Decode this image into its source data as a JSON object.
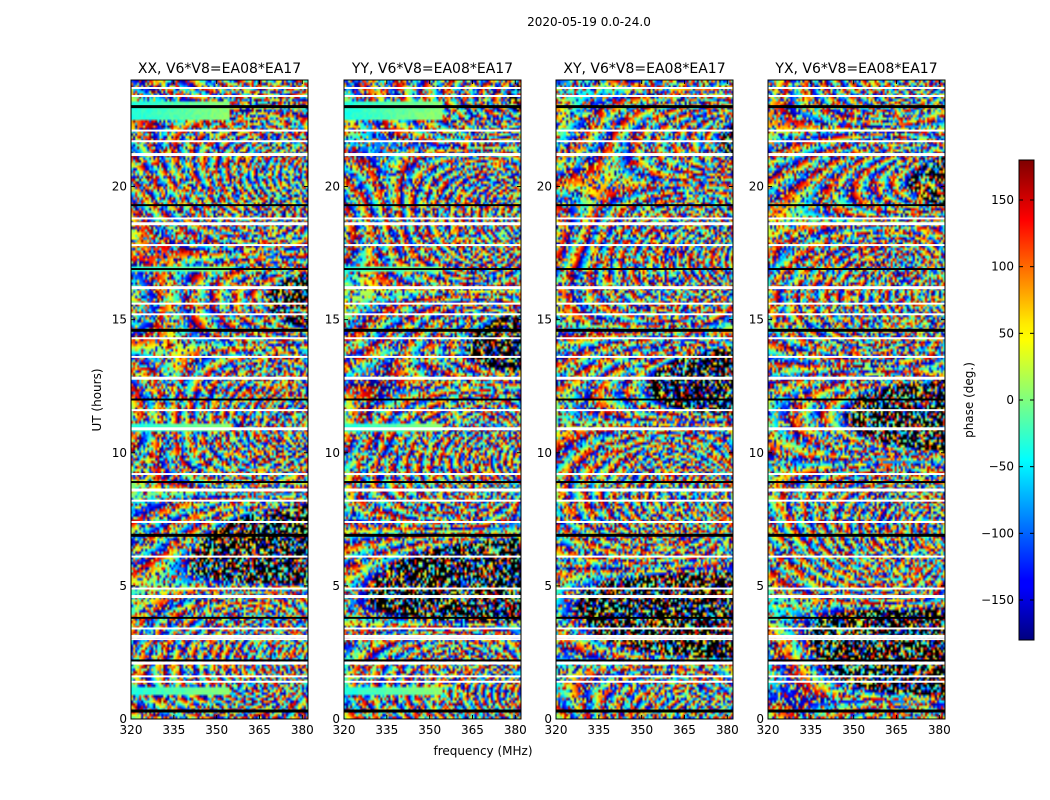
{
  "chart_data": {
    "type": "heatmap",
    "suptitle": "2020-05-19 0.0-24.0",
    "xlabel": "frequency (MHz)",
    "ylabel": "UT (hours)",
    "x_range": [
      320,
      382
    ],
    "y_range": [
      0,
      24
    ],
    "x_ticks": [
      320,
      335,
      350,
      365,
      380
    ],
    "y_ticks": [
      0,
      5,
      10,
      15,
      20
    ],
    "colorbar": {
      "label": "phase (deg.)",
      "range": [
        -180,
        180
      ],
      "ticks": [
        -150,
        -100,
        -50,
        0,
        50,
        100,
        150
      ],
      "colormap": "jet"
    },
    "panels": [
      {
        "title": "XX, V6*V8=EA08*EA17",
        "seed": 11
      },
      {
        "title": "YY, V6*V8=EA08*EA17",
        "seed": 23
      },
      {
        "title": "XY, V6*V8=EA08*EA17",
        "seed": 37
      },
      {
        "title": "YX, V6*V8=EA08*EA17",
        "seed": 53
      }
    ],
    "flagged_rows_hours": [
      0.3,
      1.4,
      1.6,
      2.1,
      2.2,
      3.0,
      3.1,
      3.4,
      3.8,
      4.6,
      4.9,
      6.1,
      6.9,
      7.4,
      8.2,
      8.6,
      8.9,
      9.2,
      10.9,
      11.6,
      12.0,
      12.8,
      13.6,
      14.3,
      14.6,
      15.2,
      15.6,
      16.2,
      16.9,
      17.8,
      18.6,
      18.8,
      19.3,
      21.2,
      21.7,
      22.1,
      23.0,
      23.4,
      23.7
    ],
    "coherent_bands_hours": [
      {
        "hours": [
          0.9,
          1.2
        ],
        "panels": [
          0,
          1
        ]
      },
      {
        "hours": [
          10.8,
          11.1
        ],
        "panels": [
          0,
          1
        ]
      },
      {
        "hours": [
          16.8,
          17.0
        ],
        "panels": [
          0,
          1
        ]
      },
      {
        "hours": [
          22.5,
          23.2
        ],
        "panels": [
          0,
          1
        ]
      }
    ]
  }
}
